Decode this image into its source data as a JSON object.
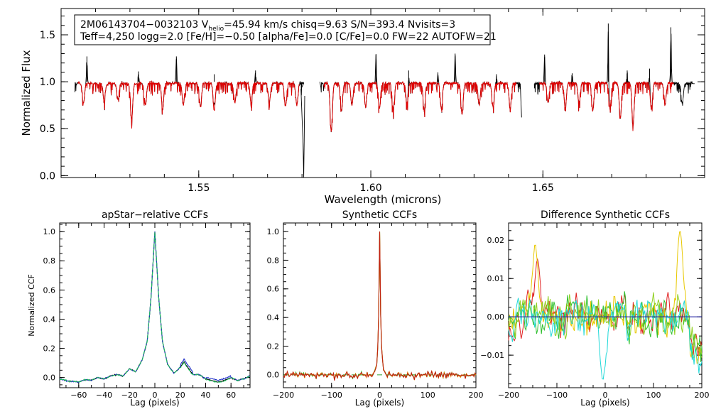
{
  "chart_data": [
    {
      "id": "spectrum",
      "type": "line",
      "title": "",
      "xlabel": "Wavelength (microns)",
      "ylabel": "Normalized Flux",
      "xlim": [
        1.51,
        1.697
      ],
      "ylim": [
        -0.02,
        1.78
      ],
      "xticks": [
        {
          "value": 1.55,
          "label": "1.55"
        },
        {
          "value": 1.6,
          "label": "1.60"
        },
        {
          "value": 1.65,
          "label": "1.65"
        }
      ],
      "yticks": [
        {
          "value": 0.0,
          "label": "0.0"
        },
        {
          "value": 0.5,
          "label": "0.5"
        },
        {
          "value": 1.0,
          "label": "1.0"
        },
        {
          "value": 1.5,
          "label": "1.5"
        }
      ],
      "annotation": {
        "line1_star": "2M06143704−0032103",
        "line1_v": "V",
        "line1_vsub": "helio",
        "line1_rest": "=45.94 km/s  chisq=9.63  S/N=393.4  Nvisits=3",
        "line2": "Teff=4,250 logg=2.0 [Fe/H]=−0.50 [alpha/Fe]=0.0 [C/Fe]=0.0 FW=22 AUTOFW=21"
      },
      "chips": [
        [
          1.514,
          1.5805
        ],
        [
          1.5855,
          1.6435
        ],
        [
          1.6475,
          1.6935
        ]
      ],
      "series": [
        {
          "name": "observed",
          "color": "#000000"
        },
        {
          "name": "model",
          "color": "#e00000"
        }
      ],
      "features": {
        "deep_dip": {
          "x": 1.5805,
          "y": 0.0
        },
        "absorptions": [
          [
            1.5165,
            0.78
          ],
          [
            1.5225,
            0.8
          ],
          [
            1.5265,
            0.82
          ],
          [
            1.5305,
            0.6
          ],
          [
            1.5345,
            0.76
          ],
          [
            1.5395,
            0.72
          ],
          [
            1.5455,
            0.76
          ],
          [
            1.5505,
            0.74
          ],
          [
            1.5545,
            0.7
          ],
          [
            1.5605,
            0.78
          ],
          [
            1.5652,
            0.77
          ],
          [
            1.5705,
            0.78
          ],
          [
            1.5752,
            0.74
          ],
          [
            1.5785,
            0.76
          ],
          [
            1.5885,
            0.48
          ],
          [
            1.5915,
            0.7
          ],
          [
            1.5945,
            0.76
          ],
          [
            1.5985,
            0.74
          ],
          [
            1.6025,
            0.72
          ],
          [
            1.6065,
            0.7
          ],
          [
            1.6105,
            0.78
          ],
          [
            1.6155,
            0.7
          ],
          [
            1.6205,
            0.72
          ],
          [
            1.6265,
            0.66
          ],
          [
            1.6315,
            0.76
          ],
          [
            1.6355,
            0.74
          ],
          [
            1.6405,
            0.72
          ],
          [
            1.6515,
            0.78
          ],
          [
            1.6565,
            0.72
          ],
          [
            1.6605,
            0.78
          ],
          [
            1.6645,
            0.7
          ],
          [
            1.6695,
            0.72
          ],
          [
            1.6725,
            0.62
          ],
          [
            1.6762,
            0.54
          ],
          [
            1.6815,
            0.72
          ],
          [
            1.6855,
            0.76
          ],
          [
            1.6905,
            0.78
          ]
        ],
        "emissions": [
          [
            1.5175,
            1.27
          ],
          [
            1.5325,
            1.11
          ],
          [
            1.5435,
            1.27
          ],
          [
            1.5545,
            1.08
          ],
          [
            1.5665,
            1.12
          ],
          [
            1.6015,
            1.29
          ],
          [
            1.611,
            1.12
          ],
          [
            1.6195,
            1.1
          ],
          [
            1.6245,
            1.3
          ],
          [
            1.6365,
            1.08
          ],
          [
            1.6505,
            1.29
          ],
          [
            1.6585,
            1.09
          ],
          [
            1.669,
            1.62
          ],
          [
            1.6745,
            1.12
          ],
          [
            1.681,
            1.14
          ],
          [
            1.6872,
            1.58
          ]
        ]
      }
    },
    {
      "id": "apstar-ccf",
      "type": "line",
      "title": "apStar−relative CCFs",
      "xlabel": "Lag (pixels)",
      "ylabel": "Normalized CCF",
      "xlim": [
        -75,
        75
      ],
      "ylim": [
        -0.07,
        1.06
      ],
      "xticks": [
        {
          "value": -60,
          "label": "−60"
        },
        {
          "value": -40,
          "label": "−40"
        },
        {
          "value": -20,
          "label": "−20"
        },
        {
          "value": 0,
          "label": "0"
        },
        {
          "value": 20,
          "label": "20"
        },
        {
          "value": 40,
          "label": "40"
        },
        {
          "value": 60,
          "label": "60"
        }
      ],
      "yticks": [
        {
          "value": 0.0,
          "label": "0.0"
        },
        {
          "value": 0.2,
          "label": "0.2"
        },
        {
          "value": 0.4,
          "label": "0.4"
        },
        {
          "value": 0.6,
          "label": "0.6"
        },
        {
          "value": 0.8,
          "label": "0.8"
        },
        {
          "value": 1.0,
          "label": "1.0"
        }
      ],
      "series": [
        {
          "name": "visit 1",
          "color": "#000000"
        },
        {
          "name": "visit 2",
          "color": "#2030c8"
        },
        {
          "name": "visit 3",
          "color": "#20c060"
        }
      ],
      "knots": {
        "x": [
          -75,
          -68,
          -60,
          -55,
          -50,
          -45,
          -40,
          -35,
          -30,
          -25,
          -20,
          -15,
          -10,
          -6,
          -3,
          0,
          3,
          6,
          10,
          15,
          20,
          23,
          25,
          30,
          35,
          40,
          45,
          50,
          55,
          60,
          65,
          70,
          75
        ],
        "y": [
          -0.01,
          -0.025,
          -0.03,
          -0.015,
          -0.02,
          0.0,
          -0.01,
          0.01,
          0.02,
          0.01,
          0.06,
          0.04,
          0.12,
          0.25,
          0.55,
          1.0,
          0.55,
          0.25,
          0.09,
          0.03,
          0.07,
          0.11,
          0.08,
          0.02,
          0.02,
          -0.01,
          -0.02,
          -0.03,
          -0.02,
          0.0,
          -0.02,
          -0.01,
          0.01
        ]
      }
    },
    {
      "id": "synthetic-ccf",
      "type": "line",
      "title": "Synthetic CCFs",
      "xlabel": "Lag (pixels)",
      "ylabel": "",
      "xlim": [
        -200,
        200
      ],
      "ylim": [
        -0.09,
        1.06
      ],
      "xticks": [
        {
          "value": -200,
          "label": "−200"
        },
        {
          "value": -100,
          "label": "−100"
        },
        {
          "value": 0,
          "label": "0"
        },
        {
          "value": 100,
          "label": "100"
        },
        {
          "value": 200,
          "label": "200"
        }
      ],
      "yticks": [
        {
          "value": 0.0,
          "label": "0.0"
        },
        {
          "value": 0.2,
          "label": "0.2"
        },
        {
          "value": 0.4,
          "label": "0.4"
        },
        {
          "value": 0.6,
          "label": "0.6"
        },
        {
          "value": 0.8,
          "label": "0.8"
        },
        {
          "value": 1.0,
          "label": "1.0"
        }
      ],
      "series": [
        {
          "name": "green",
          "color": "#30c030"
        },
        {
          "name": "orange",
          "color": "#e08000"
        },
        {
          "name": "red",
          "color": "#c02010"
        }
      ],
      "baseline": {
        "y": 0.0,
        "color": "#30a030",
        "style": "dashed"
      },
      "peak": {
        "x": 0,
        "y": 1.0
      }
    },
    {
      "id": "difference-ccf",
      "type": "line",
      "title": "Difference Synthetic CCFs",
      "xlabel": "Lag (pixels)",
      "ylabel": "",
      "xlim": [
        -200,
        200
      ],
      "ylim": [
        -0.0185,
        0.0245
      ],
      "xticks": [
        {
          "value": -200,
          "label": "−200"
        },
        {
          "value": -100,
          "label": "−100"
        },
        {
          "value": 0,
          "label": "0"
        },
        {
          "value": 100,
          "label": "100"
        },
        {
          "value": 200,
          "label": "200"
        }
      ],
      "yticks": [
        {
          "value": -0.01,
          "label": "−0.01"
        },
        {
          "value": 0.0,
          "label": "0.00"
        },
        {
          "value": 0.01,
          "label": "0.01"
        },
        {
          "value": 0.02,
          "label": "0.02"
        }
      ],
      "zero_line": {
        "y": 0.0,
        "color": "#2020a0"
      },
      "series": [
        {
          "name": "red",
          "color": "#e02020"
        },
        {
          "name": "yellow",
          "color": "#e8c800"
        },
        {
          "name": "green",
          "color": "#30c030"
        },
        {
          "name": "yellowgreen",
          "color": "#90d020"
        },
        {
          "name": "cyan",
          "color": "#20d8d8"
        }
      ],
      "highlights": [
        {
          "series": "yellow",
          "x": 155,
          "y": 0.0225
        },
        {
          "series": "yellow",
          "x": -145,
          "y": 0.019
        },
        {
          "series": "cyan",
          "x": -5,
          "y": -0.0165
        },
        {
          "series": "red",
          "x": -140,
          "y": 0.015
        }
      ]
    }
  ]
}
